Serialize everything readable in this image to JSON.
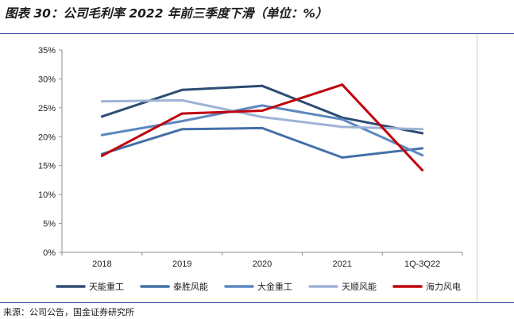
{
  "header": {
    "title": "图表 30：公司毛利率 2022 年前三季度下滑（单位：%）"
  },
  "footer": {
    "source": "来源：公司公告，国金证券研究所"
  },
  "chart_data": {
    "type": "line",
    "title": "图表 30：公司毛利率 2022 年前三季度下滑（单位：%）",
    "xlabel": "",
    "ylabel": "",
    "categories": [
      "2018",
      "2019",
      "2020",
      "2021",
      "1Q-3Q22"
    ],
    "ylim": [
      0,
      35
    ],
    "yticks": [
      0,
      5,
      10,
      15,
      20,
      25,
      30,
      35
    ],
    "ytick_labels": [
      "0%",
      "5%",
      "10%",
      "15%",
      "20%",
      "25%",
      "30%",
      "35%"
    ],
    "grid": false,
    "legend_position": "bottom",
    "series": [
      {
        "name": "天能重工",
        "color": "#2e4d74",
        "values": [
          23.5,
          28.1,
          28.8,
          23.3,
          20.6
        ]
      },
      {
        "name": "泰胜风能",
        "color": "#4470a8",
        "values": [
          17.0,
          21.3,
          21.5,
          16.4,
          18.0
        ]
      },
      {
        "name": "大金重工",
        "color": "#5b88c0",
        "values": [
          20.3,
          22.7,
          25.4,
          23.0,
          16.8
        ]
      },
      {
        "name": "天顺风能",
        "color": "#9fb3d6",
        "values": [
          26.1,
          26.3,
          23.4,
          21.7,
          21.3
        ]
      },
      {
        "name": "海力风电",
        "color": "#c0000c",
        "values": [
          16.7,
          24.0,
          24.5,
          29.0,
          14.2
        ]
      }
    ]
  }
}
